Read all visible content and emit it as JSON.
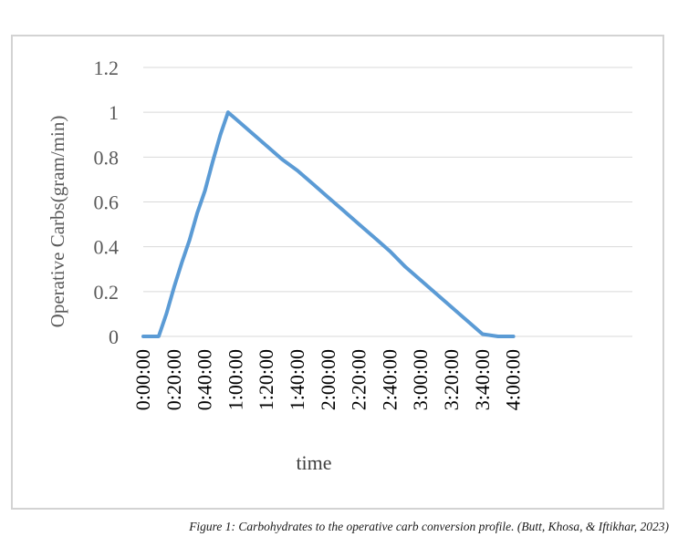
{
  "chart_data": {
    "type": "line",
    "xlabel": "time",
    "ylabel": "Operative Carbs(gram/min)",
    "ylim": [
      0,
      1.2
    ],
    "yticks": [
      "0",
      "0.2",
      "0.4",
      "0.6",
      "0.8",
      "1",
      "1.2"
    ],
    "xticks": [
      "0:00:00",
      "0:20:00",
      "0:40:00",
      "1:00:00",
      "1:20:00",
      "1:40:00",
      "2:00:00",
      "2:20:00",
      "2:40:00",
      "3:00:00",
      "3:20:00",
      "3:40:00",
      "4:00:00"
    ],
    "x_minutes": [
      0,
      10,
      15,
      20,
      25,
      30,
      35,
      40,
      45,
      50,
      55,
      60,
      70,
      80,
      90,
      100,
      110,
      120,
      130,
      140,
      150,
      160,
      170,
      180,
      190,
      200,
      210,
      220,
      230,
      235,
      240
    ],
    "series": [
      {
        "color": "#5b9bd5",
        "values": [
          0,
          0,
          0.1,
          0.22,
          0.33,
          0.43,
          0.55,
          0.65,
          0.78,
          0.9,
          1.0,
          0.97,
          0.91,
          0.85,
          0.79,
          0.74,
          0.68,
          0.62,
          0.56,
          0.5,
          0.44,
          0.38,
          0.31,
          0.25,
          0.19,
          0.13,
          0.07,
          0.01,
          0,
          0,
          0
        ]
      }
    ],
    "grid": true
  },
  "caption": "Figure 1: Carbohydrates to the operative carb conversion profile. (Butt, Khosa, & Iftikhar, 2023)"
}
